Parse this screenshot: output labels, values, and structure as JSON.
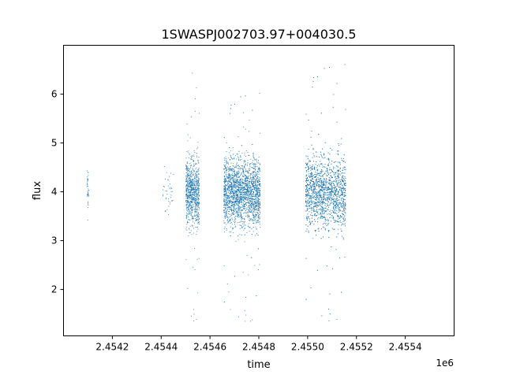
{
  "chart_data": {
    "type": "scatter",
    "title": "1SWASPJ002703.97+004030.5",
    "xlabel": "time",
    "ylabel": "flux",
    "x_offset_label": "1e6",
    "xlim": [
      2.454,
      2.4556
    ],
    "ylim": [
      1.05,
      7.0
    ],
    "x_ticks": [
      2.4542,
      2.4544,
      2.4546,
      2.4548,
      2.455,
      2.4552,
      2.4554
    ],
    "x_tick_labels": [
      "2.4542",
      "2.4544",
      "2.4546",
      "2.4548",
      "2.4550",
      "2.4552",
      "2.4554"
    ],
    "y_ticks": [
      2,
      3,
      4,
      5,
      6
    ],
    "y_tick_labels": [
      "2",
      "3",
      "4",
      "5",
      "6"
    ],
    "grid": false,
    "marker_color": "#1f77b4",
    "series": [
      {
        "clusters": [
          {
            "x_range": [
              2.454095,
              2.454102
            ],
            "center": 4.0,
            "core_spread": [
              3.2,
              4.6
            ],
            "outlier_range": [
              2.95,
              4.7
            ],
            "density": "sparse"
          },
          {
            "x_range": [
              2.454655,
              2.454805
            ],
            "center": 4.0,
            "core_spread": [
              3.2,
              4.9
            ],
            "outlier_range": [
              1.3,
              6.1
            ],
            "density": "dense"
          },
          {
            "x_range": [
              2.45499,
              2.455155
            ],
            "center": 4.0,
            "core_spread": [
              3.1,
              4.9
            ],
            "outlier_range": [
              1.3,
              6.7
            ],
            "density": "dense"
          },
          {
            "x_range": [
              2.4544,
              2.45445
            ],
            "center": 4.0,
            "core_spread": [
              3.3,
              4.6
            ],
            "outlier_range": [
              2.8,
              4.7
            ],
            "density": "sparse"
          },
          {
            "x_range": [
              2.4545,
              2.454555
            ],
            "center": 4.0,
            "core_spread": [
              3.2,
              4.9
            ],
            "outlier_range": [
              1.3,
              6.6
            ],
            "density": "medium"
          }
        ]
      }
    ]
  }
}
